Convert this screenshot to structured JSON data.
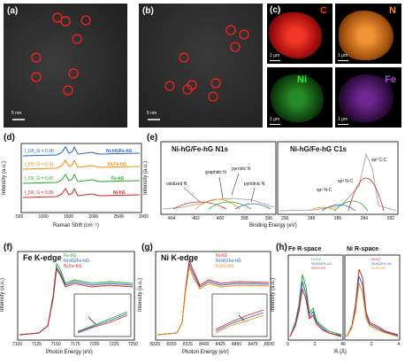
{
  "panels": {
    "a": {
      "label": "(a)",
      "scale": "5 nm"
    },
    "b": {
      "label": "(b)",
      "scale": "5 nm"
    },
    "c": {
      "label": "(c)",
      "maps": [
        {
          "element": "C",
          "scale": "1 μm",
          "color": "#ff2a1a"
        },
        {
          "element": "N",
          "scale": "1 μm",
          "color": "#ff8a1a"
        },
        {
          "element": "Ni",
          "scale": "1 μm",
          "color": "#33ee33"
        },
        {
          "element": "Fe",
          "scale": "1 μm",
          "color": "#b044e6"
        }
      ]
    },
    "d": {
      "label": "(d)",
      "xlabel": "Raman Shift (cm⁻¹)",
      "ylabel": "Intensity (a.u.)",
      "xticks": [
        "500",
        "1000",
        "1500",
        "2000",
        "2500",
        "3000"
      ],
      "series": [
        {
          "ratio": "I_D/I_G = 0.90",
          "name": "Ni-hG/Fe-hG",
          "color": "#2266cc"
        },
        {
          "ratio": "I_D/I_G = 0.91",
          "name": "Ni,Fe-hG",
          "color": "#ff8800"
        },
        {
          "ratio": "I_D/I_G = 0.87",
          "name": "Fe-hG",
          "color": "#22aa22"
        },
        {
          "ratio": "I_D/I_G = 0.86",
          "name": "Ni-hG",
          "color": "#dd2222"
        }
      ]
    },
    "e": {
      "label": "(e)",
      "title_left": "Ni-hG/Fe-hG N1s",
      "title_right": "Ni-hG/Fe-hG C1s",
      "xlabel": "Binding Energy (eV)",
      "ylabel": "Intensity (a.u.)",
      "xticks_left": [
        "404",
        "402",
        "400",
        "398",
        "396"
      ],
      "xticks_right": [
        "290",
        "288",
        "286",
        "284",
        "282"
      ],
      "annotations_left": [
        "graphitic N",
        "pyrrolic N",
        "oxidized N",
        "pyridinic N"
      ],
      "annotations_right": [
        "sp² C-C",
        "sp³ N-C",
        "sp² N-C"
      ]
    },
    "f": {
      "label": "(f)",
      "title": "Fe K-edge",
      "xlabel": "Photon Energy (eV)",
      "ylabel": "Intensity (a.u.)",
      "xticks": [
        "7100",
        "7125",
        "7150",
        "7175",
        "7200",
        "7225",
        "7250"
      ],
      "legend": [
        "Fe-hG",
        "Ni-hG/Fe-hG",
        "Ni,Fe-hG"
      ]
    },
    "g": {
      "label": "(g)",
      "title": "Ni K-edge",
      "xlabel": "Photon Energy (eV)",
      "ylabel": "Intensity (a.u.)",
      "xticks": [
        "8325",
        "8350",
        "8375",
        "8400",
        "8425",
        "8450",
        "8475",
        "8500"
      ],
      "legend": [
        "Ni-hG",
        "Ni-hG/Fe-hG",
        "Ni,Fe-hG"
      ]
    },
    "h": {
      "label": "(h)",
      "title_left": "Fe R-space",
      "title_right": "Ni R-space",
      "xlabel": "R (Å)",
      "ylabel": "Intensity (a.u.)",
      "legend_left": [
        "Fe-hG",
        "Ni-hG/Fe-hG",
        "Ni,Fe-hG"
      ],
      "legend_right": [
        "Ni-hG",
        "Ni-hG/Fe-hG",
        "Ni,Fe-hG"
      ],
      "xticks": [
        "0",
        "2",
        "4",
        "0",
        "2",
        "4"
      ]
    }
  },
  "colors": {
    "blue": "#2266cc",
    "orange": "#ff8800",
    "green": "#22aa22",
    "red": "#dd2222",
    "circle": "#ff2020"
  }
}
